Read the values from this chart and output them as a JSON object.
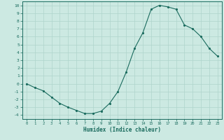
{
  "x": [
    0,
    1,
    2,
    3,
    4,
    5,
    6,
    7,
    8,
    9,
    10,
    11,
    12,
    13,
    14,
    15,
    16,
    17,
    18,
    19,
    20,
    21,
    22,
    23
  ],
  "y": [
    0.0,
    -0.5,
    -0.9,
    -1.7,
    -2.5,
    -3.0,
    -3.4,
    -3.8,
    -3.8,
    -3.5,
    -2.5,
    -1.0,
    1.5,
    4.5,
    6.5,
    9.5,
    10.0,
    9.8,
    9.5,
    7.5,
    7.0,
    6.0,
    4.5,
    3.5
  ],
  "xlabel": "Humidex (Indice chaleur)",
  "xlim": [
    -0.5,
    23.5
  ],
  "ylim": [
    -4.5,
    10.5
  ],
  "yticks": [
    10,
    9,
    8,
    7,
    6,
    5,
    4,
    3,
    2,
    1,
    0,
    -1,
    -2,
    -3,
    -4
  ],
  "xticks": [
    0,
    1,
    2,
    3,
    4,
    5,
    6,
    7,
    8,
    9,
    10,
    11,
    12,
    13,
    14,
    15,
    16,
    17,
    18,
    19,
    20,
    21,
    22,
    23
  ],
  "line_color": "#1a6b5e",
  "bg_color": "#cce9e2",
  "grid_color": "#afd4cc",
  "font_color": "#1a6b5e"
}
